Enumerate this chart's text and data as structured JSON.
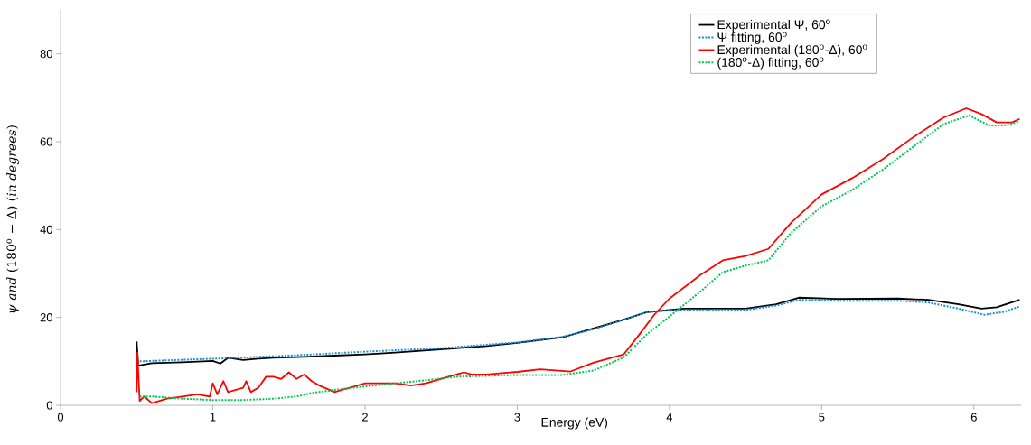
{
  "chart_data": {
    "type": "line",
    "xlabel": "Energy (eV)",
    "ylabel": "*ψ and* (180$^{o}$ − Δ)      (*in degrees*)",
    "xlim": [
      0,
      6.31
    ],
    "ylim": [
      0,
      90
    ],
    "xticks": [
      0,
      1,
      2,
      3,
      4,
      5,
      6
    ],
    "yticks": [
      0,
      20,
      40,
      60,
      80
    ],
    "grid": false,
    "legend": "top right",
    "marker": "none",
    "series": [
      {
        "name": "Experimental Ψ, 60$^{o}$",
        "color": "#000000",
        "line_style": "solid",
        "x": [
          0.5,
          0.505,
          0.51,
          0.6,
          0.8,
          1.0,
          1.05,
          1.1,
          1.2,
          1.3,
          1.4,
          1.6,
          1.8,
          2.0,
          2.2,
          2.4,
          2.6,
          2.8,
          3.0,
          3.3,
          3.5,
          3.7,
          3.85,
          4.0,
          4.1,
          4.5,
          4.7,
          4.85,
          5.1,
          5.5,
          5.7,
          5.9,
          6.05,
          6.15,
          6.3
        ],
        "values": [
          14.5,
          12,
          9,
          9.6,
          9.8,
          10.1,
          9.5,
          10.8,
          10.3,
          10.6,
          10.8,
          11,
          11.3,
          11.6,
          12,
          12.5,
          13,
          13.5,
          14.2,
          15.5,
          17.5,
          19.5,
          21.2,
          21.7,
          22,
          22,
          23,
          24.5,
          24.2,
          24.3,
          24,
          23,
          22,
          22.3,
          24
        ]
      },
      {
        "name": "Ψ fitting, 60$^{o}$",
        "color": "#1a8fd8",
        "line_style": "dotted",
        "x": [
          0.52,
          1.0,
          1.5,
          2.0,
          2.5,
          3.0,
          3.3,
          3.5,
          3.7,
          3.85,
          4.0,
          4.5,
          4.7,
          4.85,
          5.1,
          5.5,
          5.7,
          5.9,
          6.07,
          6.2,
          6.3
        ],
        "values": [
          10,
          10.6,
          11.3,
          12.2,
          13,
          14.3,
          15.6,
          17.3,
          19.5,
          21.2,
          21.6,
          21.7,
          22.7,
          24,
          23.8,
          23.8,
          23.4,
          22,
          20.6,
          21.3,
          22.5
        ]
      },
      {
        "name": "Experimental (180$^{o}$-Δ), 60$^{o}$",
        "color": "#ff0000",
        "line_style": "solid",
        "x": [
          0.5,
          0.505,
          0.51,
          0.52,
          0.55,
          0.6,
          0.7,
          0.8,
          0.9,
          0.98,
          1.0,
          1.03,
          1.07,
          1.1,
          1.2,
          1.22,
          1.25,
          1.3,
          1.35,
          1.4,
          1.45,
          1.5,
          1.55,
          1.6,
          1.65,
          1.7,
          1.8,
          1.85,
          1.9,
          2.0,
          2.1,
          2.2,
          2.3,
          2.4,
          2.5,
          2.6,
          2.65,
          2.7,
          2.8,
          2.9,
          3.0,
          3.15,
          3.35,
          3.5,
          3.7,
          3.8,
          3.9,
          4.0,
          4.2,
          4.35,
          4.5,
          4.65,
          4.8,
          5.0,
          5.2,
          5.4,
          5.6,
          5.8,
          5.95,
          6.05,
          6.15,
          6.25,
          6.3
        ],
        "values": [
          3,
          12,
          8,
          1,
          2,
          0.5,
          1.5,
          2,
          2.5,
          2,
          5,
          2.5,
          5.5,
          3,
          4,
          5.5,
          3,
          4,
          6.5,
          6.5,
          6,
          7.5,
          6,
          7,
          5.5,
          4.5,
          3,
          3.5,
          4,
          5,
          5,
          5,
          4.5,
          5,
          6,
          7,
          7.5,
          7,
          7,
          7.3,
          7.6,
          8.2,
          7.7,
          9.7,
          11.6,
          16,
          20.6,
          24.3,
          29.6,
          33,
          34,
          35.6,
          41.6,
          48,
          51.7,
          56,
          61,
          65.5,
          67.6,
          66.3,
          64.4,
          64.4,
          65.2
        ]
      },
      {
        "name": "(180$^{o}$-Δ) fitting, 60$^{o}$",
        "color": "#00c850",
        "line_style": "dotted",
        "x": [
          0.52,
          0.6,
          0.8,
          1.0,
          1.2,
          1.4,
          1.55,
          1.65,
          1.8,
          2.0,
          2.2,
          2.4,
          2.6,
          2.8,
          3.0,
          3.3,
          3.5,
          3.7,
          3.85,
          4.0,
          4.2,
          4.35,
          4.5,
          4.65,
          4.8,
          5.0,
          5.2,
          5.4,
          5.6,
          5.8,
          5.97,
          6.1,
          6.2,
          6.3
        ],
        "values": [
          2,
          2,
          1.5,
          1.2,
          1.2,
          1.5,
          2,
          2.8,
          3.5,
          4.3,
          5,
          5.7,
          6.5,
          6.7,
          6.9,
          6.9,
          7.9,
          10.9,
          16.1,
          20.2,
          25.8,
          30.3,
          31.8,
          33,
          39.3,
          45.3,
          49,
          53.6,
          58.8,
          64,
          66,
          63.7,
          63.7,
          64.6
        ]
      }
    ]
  }
}
